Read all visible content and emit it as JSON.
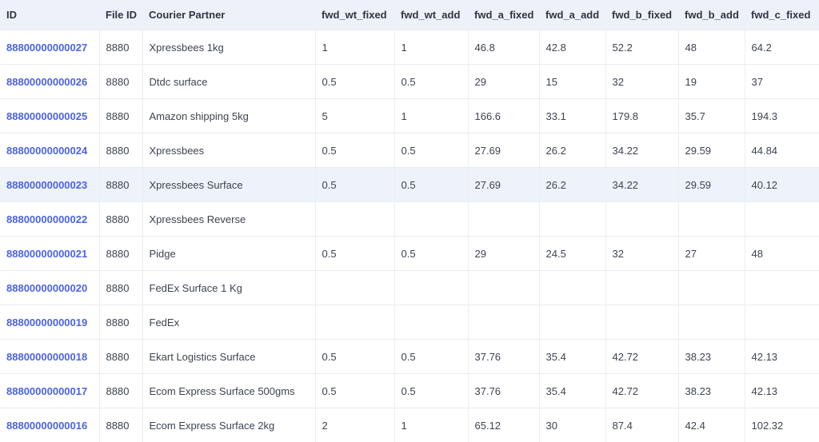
{
  "columns": [
    "ID",
    "File ID",
    "Courier Partner",
    "fwd_wt_fixed",
    "fwd_wt_add",
    "fwd_a_fixed",
    "fwd_a_add",
    "fwd_b_fixed",
    "fwd_b_add",
    "fwd_c_fixed"
  ],
  "highlighted_row_id": "88800000000023",
  "rows": [
    {
      "id": "88800000000027",
      "file_id": "8880",
      "courier": "Xpressbees 1kg",
      "fwd_wt_fixed": "1",
      "fwd_wt_add": "1",
      "fwd_a_fixed": "46.8",
      "fwd_a_add": "42.8",
      "fwd_b_fixed": "52.2",
      "fwd_b_add": "48",
      "fwd_c_fixed": "64.2"
    },
    {
      "id": "88800000000026",
      "file_id": "8880",
      "courier": "Dtdc surface",
      "fwd_wt_fixed": "0.5",
      "fwd_wt_add": "0.5",
      "fwd_a_fixed": "29",
      "fwd_a_add": "15",
      "fwd_b_fixed": "32",
      "fwd_b_add": "19",
      "fwd_c_fixed": "37"
    },
    {
      "id": "88800000000025",
      "file_id": "8880",
      "courier": "Amazon shipping 5kg",
      "fwd_wt_fixed": "5",
      "fwd_wt_add": "1",
      "fwd_a_fixed": "166.6",
      "fwd_a_add": "33.1",
      "fwd_b_fixed": "179.8",
      "fwd_b_add": "35.7",
      "fwd_c_fixed": "194.3"
    },
    {
      "id": "88800000000024",
      "file_id": "8880",
      "courier": "Xpressbees",
      "fwd_wt_fixed": "0.5",
      "fwd_wt_add": "0.5",
      "fwd_a_fixed": "27.69",
      "fwd_a_add": "26.2",
      "fwd_b_fixed": "34.22",
      "fwd_b_add": "29.59",
      "fwd_c_fixed": "44.84"
    },
    {
      "id": "88800000000023",
      "file_id": "8880",
      "courier": "Xpressbees Surface",
      "fwd_wt_fixed": "0.5",
      "fwd_wt_add": "0.5",
      "fwd_a_fixed": "27.69",
      "fwd_a_add": "26.2",
      "fwd_b_fixed": "34.22",
      "fwd_b_add": "29.59",
      "fwd_c_fixed": "40.12"
    },
    {
      "id": "88800000000022",
      "file_id": "8880",
      "courier": "Xpressbees Reverse",
      "fwd_wt_fixed": "",
      "fwd_wt_add": "",
      "fwd_a_fixed": "",
      "fwd_a_add": "",
      "fwd_b_fixed": "",
      "fwd_b_add": "",
      "fwd_c_fixed": ""
    },
    {
      "id": "88800000000021",
      "file_id": "8880",
      "courier": "Pidge",
      "fwd_wt_fixed": "0.5",
      "fwd_wt_add": "0.5",
      "fwd_a_fixed": "29",
      "fwd_a_add": "24.5",
      "fwd_b_fixed": "32",
      "fwd_b_add": "27",
      "fwd_c_fixed": "48"
    },
    {
      "id": "88800000000020",
      "file_id": "8880",
      "courier": "FedEx Surface 1 Kg",
      "fwd_wt_fixed": "",
      "fwd_wt_add": "",
      "fwd_a_fixed": "",
      "fwd_a_add": "",
      "fwd_b_fixed": "",
      "fwd_b_add": "",
      "fwd_c_fixed": ""
    },
    {
      "id": "88800000000019",
      "file_id": "8880",
      "courier": "FedEx",
      "fwd_wt_fixed": "",
      "fwd_wt_add": "",
      "fwd_a_fixed": "",
      "fwd_a_add": "",
      "fwd_b_fixed": "",
      "fwd_b_add": "",
      "fwd_c_fixed": ""
    },
    {
      "id": "88800000000018",
      "file_id": "8880",
      "courier": "Ekart Logistics Surface",
      "fwd_wt_fixed": "0.5",
      "fwd_wt_add": "0.5",
      "fwd_a_fixed": "37.76",
      "fwd_a_add": "35.4",
      "fwd_b_fixed": "42.72",
      "fwd_b_add": "38.23",
      "fwd_c_fixed": "42.13"
    },
    {
      "id": "88800000000017",
      "file_id": "8880",
      "courier": "Ecom Express Surface 500gms",
      "fwd_wt_fixed": "0.5",
      "fwd_wt_add": "0.5",
      "fwd_a_fixed": "37.76",
      "fwd_a_add": "35.4",
      "fwd_b_fixed": "42.72",
      "fwd_b_add": "38.23",
      "fwd_c_fixed": "42.13"
    },
    {
      "id": "88800000000016",
      "file_id": "8880",
      "courier": "Ecom Express Surface 2kg",
      "fwd_wt_fixed": "2",
      "fwd_wt_add": "1",
      "fwd_a_fixed": "65.12",
      "fwd_a_add": "30",
      "fwd_b_fixed": "87.4",
      "fwd_b_add": "42.4",
      "fwd_c_fixed": "102.32"
    }
  ]
}
